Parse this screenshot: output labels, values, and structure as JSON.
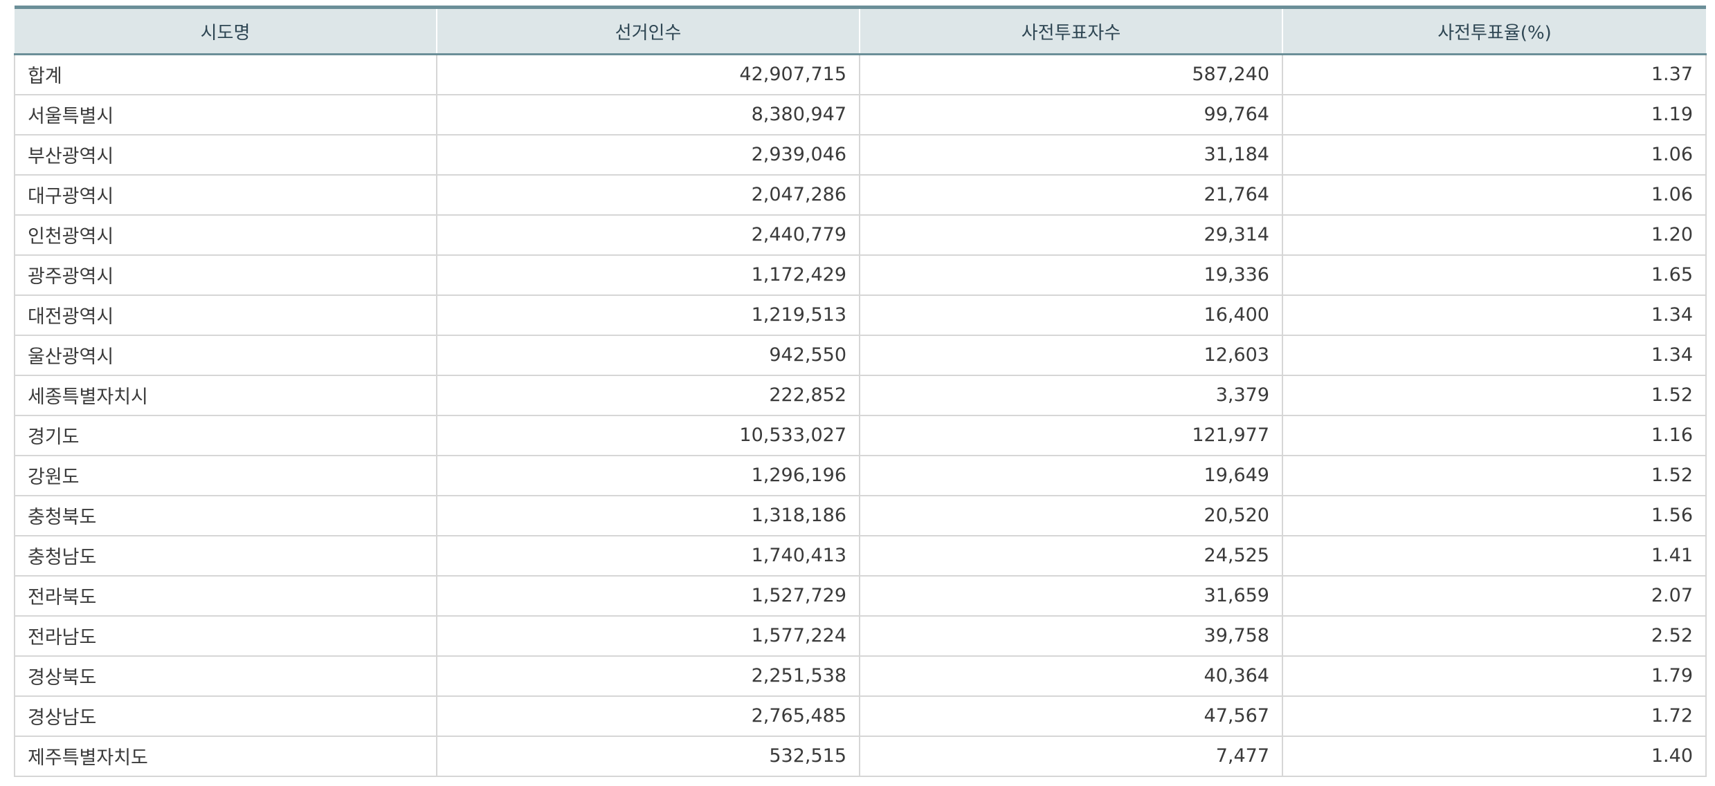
{
  "table": {
    "headers": [
      "시도명",
      "선거인수",
      "사전투표자수",
      "사전투표율(%)"
    ],
    "rows": [
      [
        "합계",
        "42,907,715",
        "587,240",
        "1.37"
      ],
      [
        "서울특별시",
        "8,380,947",
        "99,764",
        "1.19"
      ],
      [
        "부산광역시",
        "2,939,046",
        "31,184",
        "1.06"
      ],
      [
        "대구광역시",
        "2,047,286",
        "21,764",
        "1.06"
      ],
      [
        "인천광역시",
        "2,440,779",
        "29,314",
        "1.20"
      ],
      [
        "광주광역시",
        "1,172,429",
        "19,336",
        "1.65"
      ],
      [
        "대전광역시",
        "1,219,513",
        "16,400",
        "1.34"
      ],
      [
        "울산광역시",
        "942,550",
        "12,603",
        "1.34"
      ],
      [
        "세종특별자치시",
        "222,852",
        "3,379",
        "1.52"
      ],
      [
        "경기도",
        "10,533,027",
        "121,977",
        "1.16"
      ],
      [
        "강원도",
        "1,296,196",
        "19,649",
        "1.52"
      ],
      [
        "충청북도",
        "1,318,186",
        "20,520",
        "1.56"
      ],
      [
        "충청남도",
        "1,740,413",
        "24,525",
        "1.41"
      ],
      [
        "전라북도",
        "1,527,729",
        "31,659",
        "2.07"
      ],
      [
        "전라남도",
        "1,577,224",
        "39,758",
        "2.52"
      ],
      [
        "경상북도",
        "2,251,538",
        "40,364",
        "1.79"
      ],
      [
        "경상남도",
        "2,765,485",
        "47,567",
        "1.72"
      ],
      [
        "제주특별자치도",
        "532,515",
        "7,477",
        "1.40"
      ]
    ]
  }
}
